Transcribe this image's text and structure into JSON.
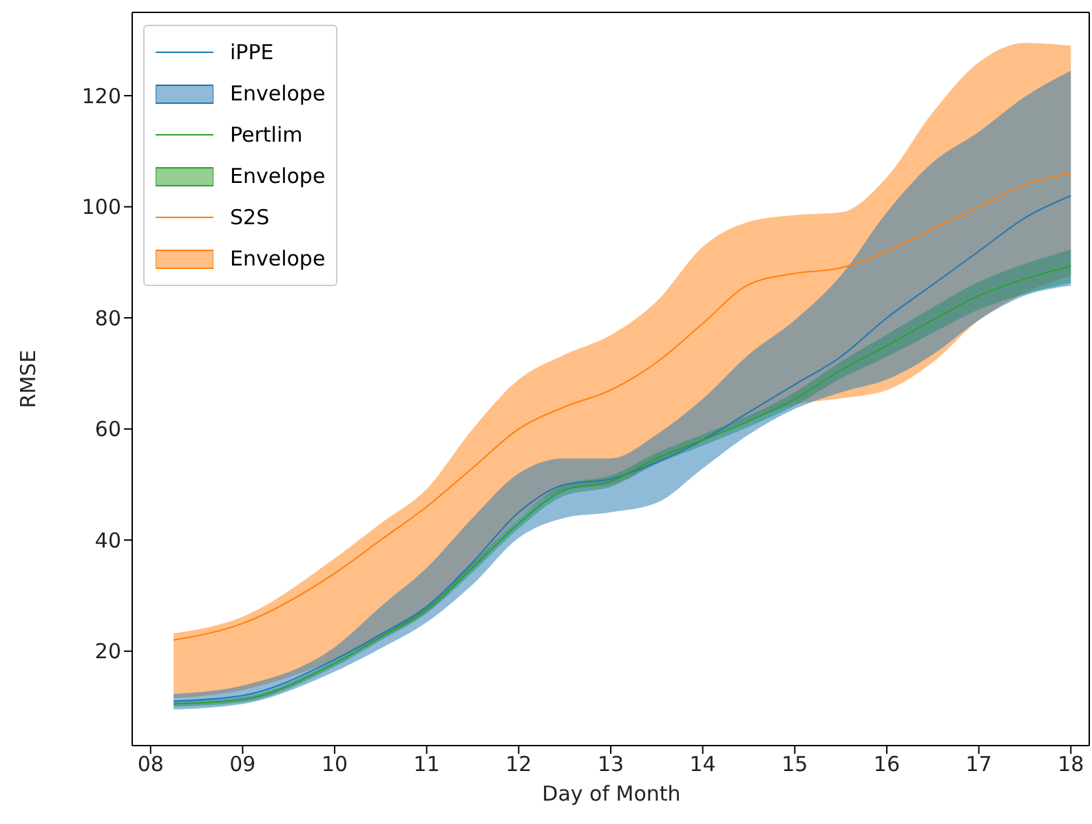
{
  "chart_data": {
    "type": "line",
    "xlabel": "Day of Month",
    "ylabel": "RMSE",
    "x": [
      8.25,
      9,
      10,
      10.5,
      11,
      11.5,
      12,
      12.5,
      13,
      13.5,
      14,
      14.5,
      15,
      15.5,
      16,
      16.5,
      17,
      17.5,
      18
    ],
    "series": [
      {
        "name": "iPPE",
        "color": "#1f77b4",
        "values": [
          11,
          12,
          18.5,
          23,
          28,
          36,
          45,
          50,
          51,
          54,
          58,
          63,
          68,
          73,
          80,
          86,
          92,
          98,
          102
        ],
        "lower": [
          9.5,
          10.5,
          16.3,
          20.5,
          25.2,
          32,
          40.4,
          44,
          45,
          46.7,
          52.9,
          59,
          63.6,
          66.6,
          68.9,
          73.4,
          79.6,
          84,
          85.8
        ],
        "upper": [
          12.3,
          13.8,
          20.7,
          28,
          35,
          44,
          52,
          54.7,
          54.7,
          59,
          65.4,
          73.4,
          79.6,
          87.6,
          99,
          108,
          113.5,
          119.8,
          124.5
        ]
      },
      {
        "name": "Envelope",
        "type": "area",
        "color": "#1f77b4",
        "values": [
          null,
          null,
          null,
          null,
          null,
          null,
          null,
          null,
          null,
          null,
          null,
          null,
          null,
          null,
          null,
          null,
          null,
          null,
          null
        ]
      },
      {
        "name": "Pertlim",
        "color": "#2ca02c",
        "values": [
          10.5,
          11.3,
          17.8,
          22.5,
          27.5,
          35,
          43,
          49,
          50.6,
          54.7,
          58,
          61.4,
          65.4,
          70.6,
          75,
          79.6,
          84,
          87,
          89.3
        ],
        "lower": [
          10,
          10.8,
          17.2,
          21.9,
          26.8,
          34.2,
          42.1,
          48,
          49.6,
          53.7,
          57,
          60.4,
          64.2,
          69.1,
          73,
          77.3,
          81.5,
          84.3,
          86.3
        ],
        "upper": [
          11,
          11.8,
          18.4,
          23.1,
          28.2,
          35.8,
          43.9,
          50,
          51.6,
          55.7,
          59,
          62.4,
          66.6,
          72.1,
          77,
          81.9,
          86.5,
          89.7,
          92.3
        ]
      },
      {
        "name": "Envelope",
        "type": "area",
        "color": "#2ca02c",
        "values": [
          null,
          null,
          null,
          null,
          null,
          null,
          null,
          null,
          null,
          null,
          null,
          null,
          null,
          null,
          null,
          null,
          null,
          null,
          null
        ]
      },
      {
        "name": "S2S",
        "color": "#ff7f0e",
        "values": [
          22,
          25,
          34,
          40,
          46,
          53,
          60,
          64,
          67,
          72,
          79,
          86,
          88,
          89,
          92,
          96,
          100,
          104,
          106
        ],
        "lower": [
          11.5,
          13,
          18.5,
          22.5,
          27,
          35,
          44,
          49,
          50,
          54,
          58,
          61.5,
          64.4,
          65.5,
          67,
          72,
          79.6,
          84.5,
          87.6
        ],
        "upper": [
          23.2,
          26.2,
          36.7,
          43,
          49.2,
          60,
          68.9,
          73.4,
          76.9,
          83,
          92.8,
          97.3,
          98.5,
          99,
          105.3,
          117,
          126,
          129.5,
          129
        ]
      },
      {
        "name": "Envelope",
        "type": "area",
        "color": "#ff7f0e",
        "values": [
          null,
          null,
          null,
          null,
          null,
          null,
          null,
          null,
          null,
          null,
          null,
          null,
          null,
          null,
          null,
          null,
          null,
          null,
          null
        ]
      }
    ],
    "xlim": [
      7.8,
      18.2
    ],
    "xticks": [
      {
        "value": 8,
        "label": "08"
      },
      {
        "value": 9,
        "label": "09"
      },
      10,
      11,
      12,
      13,
      14,
      15,
      16,
      17,
      18
    ],
    "ylim": [
      3,
      135
    ],
    "yticks": [
      20,
      40,
      60,
      80,
      100,
      120
    ],
    "legend": "top left"
  }
}
